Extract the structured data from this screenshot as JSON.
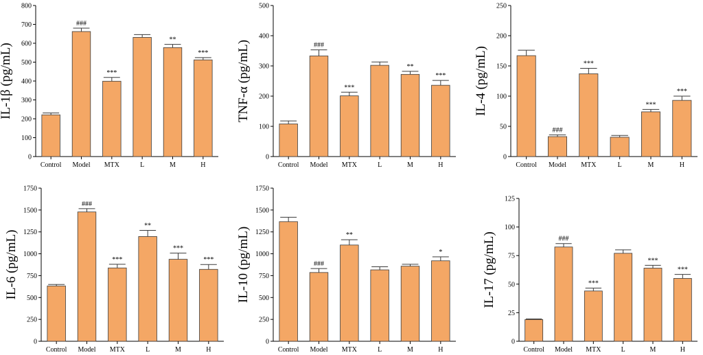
{
  "chart_data": [
    {
      "type": "bar",
      "ylabel": "IL-1β (pg/mL)",
      "categories": [
        "Control",
        "Model",
        "MTX",
        "L",
        "M",
        "H"
      ],
      "values": [
        221,
        662,
        399,
        631,
        577,
        512
      ],
      "errors": [
        10,
        18,
        20,
        15,
        17,
        12
      ],
      "significance": [
        "",
        "###",
        "***",
        "",
        "**",
        "***"
      ],
      "ylim": [
        0,
        800
      ],
      "yticks": [
        0,
        100,
        200,
        300,
        400,
        500,
        600,
        700,
        800
      ]
    },
    {
      "type": "bar",
      "ylabel": "TNF-α (pg/mL)",
      "categories": [
        "Control",
        "Model",
        "MTX",
        "L",
        "M",
        "H"
      ],
      "values": [
        108,
        333,
        201,
        302,
        272,
        236
      ],
      "errors": [
        10,
        20,
        12,
        11,
        10,
        16
      ],
      "significance": [
        "",
        "###",
        "***",
        "",
        "**",
        "***"
      ],
      "ylim": [
        0,
        500
      ],
      "yticks": [
        0,
        100,
        200,
        300,
        400,
        500
      ]
    },
    {
      "type": "bar",
      "ylabel": "IL-4 (pg/mL)",
      "categories": [
        "Control",
        "Model",
        "MTX",
        "L",
        "M",
        "H"
      ],
      "values": [
        167,
        33,
        137,
        32,
        74,
        93
      ],
      "errors": [
        9,
        3,
        9,
        3,
        4,
        7
      ],
      "significance": [
        "",
        "###",
        "***",
        "",
        "***",
        "***"
      ],
      "ylim": [
        0,
        250
      ],
      "yticks": [
        0,
        50,
        100,
        150,
        200,
        250
      ]
    },
    {
      "type": "bar",
      "ylabel": "IL-6 (pg/mL)",
      "categories": [
        "Control",
        "Model",
        "MTX",
        "L",
        "M",
        "H"
      ],
      "values": [
        632,
        1478,
        838,
        1197,
        937,
        822
      ],
      "errors": [
        17,
        38,
        42,
        70,
        70,
        55
      ],
      "significance": [
        "",
        "###",
        "***",
        "**",
        "***",
        "***"
      ],
      "ylim": [
        0,
        1750
      ],
      "yticks": [
        0,
        250,
        500,
        750,
        1000,
        1250,
        1500,
        1750
      ]
    },
    {
      "type": "bar",
      "ylabel": "IL-10 (pg/mL)",
      "categories": [
        "Control",
        "Model",
        "MTX",
        "L",
        "M",
        "H"
      ],
      "values": [
        1367,
        786,
        1100,
        816,
        858,
        920
      ],
      "errors": [
        50,
        45,
        60,
        35,
        22,
        45
      ],
      "significance": [
        "",
        "###",
        "**",
        "",
        "",
        "*"
      ],
      "ylim": [
        0,
        1750
      ],
      "yticks": [
        0,
        250,
        500,
        750,
        1000,
        1250,
        1500,
        1750
      ]
    },
    {
      "type": "bar",
      "ylabel": "IL-17 (pg/mL)",
      "categories": [
        "Control",
        "Model",
        "MTX",
        "L",
        "M",
        "H"
      ],
      "values": [
        19,
        82.5,
        44,
        77,
        64,
        55
      ],
      "errors": [
        0.5,
        3,
        2.5,
        3,
        2.5,
        3.5
      ],
      "significance": [
        "",
        "###",
        "***",
        "",
        "***",
        "***"
      ],
      "ylim": [
        0,
        125
      ],
      "yticks": [
        0,
        25,
        50,
        75,
        100,
        125
      ]
    }
  ],
  "colors": {
    "bar_fill": "#f4a765",
    "bar_stroke": "#3a3a3a",
    "axis": "#000000"
  }
}
